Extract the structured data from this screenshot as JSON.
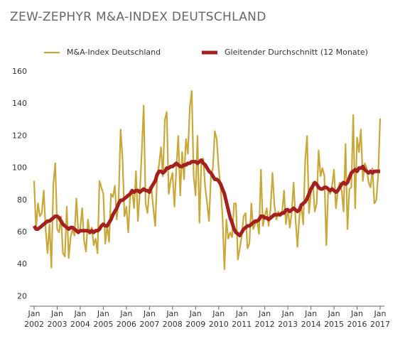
{
  "chart_data": {
    "type": "line",
    "title": "ZEW-ZEPHYR M&A-INDEX DEUTSCHLAND",
    "x": [
      "2002-01",
      "2002-02",
      "2002-03",
      "2002-04",
      "2002-05",
      "2002-06",
      "2002-07",
      "2002-08",
      "2002-09",
      "2002-10",
      "2002-11",
      "2002-12",
      "2003-01",
      "2003-02",
      "2003-03",
      "2003-04",
      "2003-05",
      "2003-06",
      "2003-07",
      "2003-08",
      "2003-09",
      "2003-10",
      "2003-11",
      "2003-12",
      "2004-01",
      "2004-02",
      "2004-03",
      "2004-04",
      "2004-05",
      "2004-06",
      "2004-07",
      "2004-08",
      "2004-09",
      "2004-10",
      "2004-11",
      "2004-12",
      "2005-01",
      "2005-02",
      "2005-03",
      "2005-04",
      "2005-05",
      "2005-06",
      "2005-07",
      "2005-08",
      "2005-09",
      "2005-10",
      "2005-11",
      "2005-12",
      "2006-01",
      "2006-02",
      "2006-03",
      "2006-04",
      "2006-05",
      "2006-06",
      "2006-07",
      "2006-08",
      "2006-09",
      "2006-10",
      "2006-11",
      "2006-12",
      "2007-01",
      "2007-02",
      "2007-03",
      "2007-04",
      "2007-05",
      "2007-06",
      "2007-07",
      "2007-08",
      "2007-09",
      "2007-10",
      "2007-11",
      "2007-12",
      "2008-01",
      "2008-02",
      "2008-03",
      "2008-04",
      "2008-05",
      "2008-06",
      "2008-07",
      "2008-08",
      "2008-09",
      "2008-10",
      "2008-11",
      "2008-12",
      "2009-01",
      "2009-02",
      "2009-03",
      "2009-04",
      "2009-05",
      "2009-06",
      "2009-07",
      "2009-08",
      "2009-09",
      "2009-10",
      "2009-11",
      "2009-12",
      "2010-01",
      "2010-02",
      "2010-03",
      "2010-04",
      "2010-05",
      "2010-06",
      "2010-07",
      "2010-08",
      "2010-09",
      "2010-10",
      "2010-11",
      "2010-12",
      "2011-01",
      "2011-02",
      "2011-03",
      "2011-04",
      "2011-05",
      "2011-06",
      "2011-07",
      "2011-08",
      "2011-09",
      "2011-10",
      "2011-11",
      "2011-12",
      "2012-01",
      "2012-02",
      "2012-03",
      "2012-04",
      "2012-05",
      "2012-06",
      "2012-07",
      "2012-08",
      "2012-09",
      "2012-10",
      "2012-11",
      "2012-12",
      "2013-01",
      "2013-02",
      "2013-03",
      "2013-04",
      "2013-05",
      "2013-06",
      "2013-07",
      "2013-08",
      "2013-09",
      "2013-10",
      "2013-11",
      "2013-12",
      "2014-01",
      "2014-02",
      "2014-03",
      "2014-04",
      "2014-05",
      "2014-06",
      "2014-07",
      "2014-08",
      "2014-09",
      "2014-10",
      "2014-11",
      "2014-12",
      "2015-01",
      "2015-02",
      "2015-03",
      "2015-04",
      "2015-05",
      "2015-06",
      "2015-07",
      "2015-08",
      "2015-09",
      "2015-10",
      "2015-11",
      "2015-12",
      "2016-01",
      "2016-02",
      "2016-03",
      "2016-04",
      "2016-05",
      "2016-06",
      "2016-07",
      "2016-08",
      "2016-09",
      "2016-10",
      "2016-11",
      "2016-12",
      "2017-01"
    ],
    "series": [
      {
        "name": "M&A-Index Deutschland",
        "color": "#c9a83a",
        "width": 2.2,
        "values": [
          92,
          62,
          78,
          70,
          72,
          86,
          62,
          47,
          65,
          38,
          90,
          103,
          62,
          60,
          70,
          47,
          45,
          76,
          44,
          57,
          62,
          58,
          81,
          60,
          62,
          75,
          55,
          48,
          68,
          59,
          63,
          52,
          56,
          47,
          92,
          88,
          84,
          53,
          64,
          54,
          84,
          82,
          89,
          68,
          82,
          124,
          106,
          70,
          76,
          60,
          84,
          86,
          75,
          98,
          67,
          85,
          110,
          139,
          78,
          72,
          88,
          88,
          75,
          64,
          95,
          102,
          113,
          95,
          130,
          135,
          84,
          92,
          97,
          76,
          100,
          120,
          83,
          110,
          93,
          118,
          109,
          138,
          148,
          95,
          83,
          120,
          66,
          104,
          106,
          88,
          78,
          67,
          95,
          100,
          123,
          118,
          100,
          88,
          70,
          37,
          68,
          56,
          60,
          57,
          78,
          78,
          43,
          50,
          58,
          70,
          72,
          50,
          53,
          78,
          62,
          65,
          67,
          59,
          99,
          64,
          70,
          75,
          64,
          75,
          97,
          77,
          68,
          73,
          70,
          72,
          86,
          65,
          75,
          63,
          72,
          91,
          68,
          51,
          70,
          77,
          65,
          104,
          120,
          72,
          85,
          91,
          73,
          78,
          111,
          95,
          100,
          95,
          52,
          86,
          84,
          89,
          99,
          75,
          86,
          91,
          86,
          73,
          115,
          62,
          87,
          88,
          133,
          75,
          119,
          110,
          124,
          92,
          103,
          100,
          91,
          88,
          100,
          78,
          80,
          96,
          131
        ]
      },
      {
        "name": "Gleitender Durchschnitt (12 Monate)",
        "color": "#a3201f",
        "width": 5,
        "values": [
          64,
          62,
          62,
          63,
          64,
          65,
          66,
          67,
          67,
          68,
          69,
          70,
          70,
          69,
          67,
          65,
          64,
          63,
          62,
          63,
          63,
          62,
          61,
          60,
          61,
          61,
          61,
          61,
          61,
          60,
          61,
          60,
          61,
          61,
          62,
          64,
          65,
          64,
          64,
          66,
          68,
          71,
          73,
          75,
          78,
          80,
          80,
          81,
          82,
          83,
          84,
          86,
          85,
          86,
          86,
          85,
          86,
          87,
          86,
          86,
          85,
          88,
          90,
          92,
          96,
          98,
          98,
          97,
          98,
          100,
          100,
          101,
          101,
          102,
          103,
          102,
          101,
          101,
          102,
          102,
          103,
          103,
          104,
          104,
          104,
          103,
          104,
          105,
          103,
          102,
          100,
          98,
          97,
          95,
          93,
          93,
          92,
          90,
          87,
          84,
          79,
          74,
          69,
          66,
          62,
          60,
          59,
          58,
          60,
          62,
          63,
          64,
          64,
          65,
          66,
          67,
          67,
          68,
          70,
          70,
          69,
          69,
          68,
          69,
          70,
          71,
          71,
          71,
          71,
          72,
          72,
          74,
          74,
          73,
          74,
          75,
          74,
          73,
          74,
          77,
          78,
          79,
          81,
          84,
          87,
          89,
          91,
          90,
          88,
          87,
          87,
          88,
          88,
          87,
          86,
          87,
          86,
          85,
          86,
          88,
          90,
          91,
          90,
          91,
          94,
          97,
          98,
          99,
          98,
          100,
          100,
          101,
          99,
          98,
          97,
          98,
          97,
          98,
          98,
          98,
          98
        ]
      }
    ],
    "ylim": [
      14,
      160
    ],
    "yticks": [
      20,
      40,
      60,
      80,
      100,
      120,
      140,
      160
    ],
    "xticks": [
      {
        "value": "2002-01",
        "label": "Jan 2002"
      },
      {
        "value": "2003-01",
        "label": "Jan 2003"
      },
      {
        "value": "2004-01",
        "label": "Jan 2004"
      },
      {
        "value": "2005-01",
        "label": "Jan 2005"
      },
      {
        "value": "2006-01",
        "label": "Jan 2006"
      },
      {
        "value": "2007-01",
        "label": "Jan 2007"
      },
      {
        "value": "2008-01",
        "label": "Jan 2008"
      },
      {
        "value": "2009-01",
        "label": "Jan 2009"
      },
      {
        "value": "2010-01",
        "label": "Jan 2010"
      },
      {
        "value": "2011-01",
        "label": "Jan 2011"
      },
      {
        "value": "2012-01",
        "label": "Jan 2012"
      },
      {
        "value": "2013-01",
        "label": "Jan 2013"
      },
      {
        "value": "2014-01",
        "label": "Jan 2014"
      },
      {
        "value": "2015-01",
        "label": "Jan 2015"
      },
      {
        "value": "2016-01",
        "label": "Jan 2016"
      },
      {
        "value": "2017-01",
        "label": "Jan 2017"
      }
    ],
    "grid": false,
    "legend": "top"
  }
}
